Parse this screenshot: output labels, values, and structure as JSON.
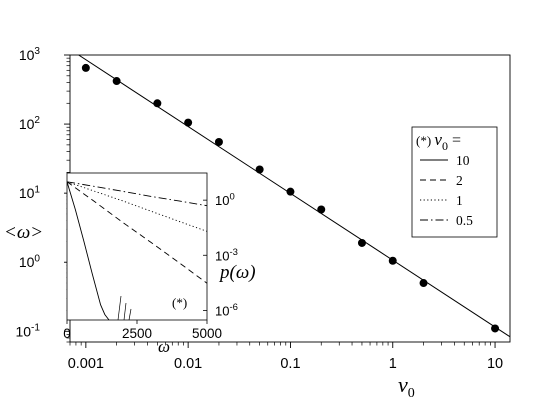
{
  "chart_data": [
    {
      "type": "scatter",
      "role": "main",
      "x_scale": "log",
      "y_scale": "log",
      "xlim": [
        0.0007,
        14
      ],
      "ylim": [
        0.07,
        1000
      ],
      "xlabel": "v",
      "xlabel_subscript": "0",
      "ylabel": "<ω>",
      "x_ticks": [
        {
          "value": 0.001,
          "label": "0.001"
        },
        {
          "value": 0.01,
          "label": "0.01"
        },
        {
          "value": 0.1,
          "label": "0.1"
        },
        {
          "value": 1,
          "label": "1"
        },
        {
          "value": 10,
          "label": "10"
        }
      ],
      "y_ticks": [
        {
          "value": 0.1,
          "base": "10",
          "exp": "-1"
        },
        {
          "value": 1,
          "base": "10",
          "exp": "0"
        },
        {
          "value": 10,
          "base": "10",
          "exp": "1"
        },
        {
          "value": 100,
          "base": "10",
          "exp": "2"
        },
        {
          "value": 1000,
          "base": "10",
          "exp": "3"
        }
      ],
      "series": [
        {
          "style": "points",
          "x": [
            0.001,
            0.002,
            0.005,
            0.01,
            0.02,
            0.05,
            0.1,
            0.2,
            0.5,
            1,
            2,
            10
          ],
          "y": [
            650,
            420,
            200,
            105,
            55,
            22,
            10.5,
            5.8,
            1.9,
            1.05,
            0.5,
            0.11
          ]
        },
        {
          "style": "line",
          "x": [
            0.00085,
            15
          ],
          "y": [
            1000,
            0.078
          ]
        }
      ],
      "legend": {
        "position": "right",
        "title_prefix": "(*)",
        "title_symbol": "v",
        "title_subscript": "0",
        "title_suffix": "=",
        "entries": [
          {
            "label": "10",
            "dash": "solid"
          },
          {
            "label": "2",
            "dash": "dashed"
          },
          {
            "label": "1",
            "dash": "dotted"
          },
          {
            "label": "0.5",
            "dash": "dashdot"
          }
        ]
      }
    },
    {
      "type": "line",
      "role": "inset",
      "x_scale": "linear",
      "y_scale": "log",
      "xlim": [
        0,
        5000
      ],
      "ylim": [
        3e-07,
        30
      ],
      "xlabel": "ω",
      "ylabel": "p(ω)",
      "annotation": "(*)",
      "x_ticks": [
        {
          "value": 0,
          "label": "0"
        },
        {
          "value": 2500,
          "label": "2500"
        },
        {
          "value": 5000,
          "label": "5000"
        }
      ],
      "y_ticks": [
        {
          "value": 1,
          "base": "10",
          "exp": "0"
        },
        {
          "value": 0.001,
          "base": "10",
          "exp": "-3"
        },
        {
          "value": 1e-06,
          "base": "10",
          "exp": "-6"
        }
      ],
      "series": [
        {
          "label": "10",
          "dash": "solid",
          "x": [
            0,
            300,
            600,
            900,
            1200,
            1350,
            1500
          ],
          "y": [
            10,
            0.3,
            0.006,
            0.0001,
            2e-06,
            6e-07,
            3e-07
          ]
        },
        {
          "label": "2",
          "dash": "dashed",
          "x": [
            0,
            1000,
            2000,
            3000,
            4000,
            5000
          ],
          "y": [
            10,
            0.8,
            0.06,
            0.005,
            0.0004,
            3e-05
          ]
        },
        {
          "label": "1",
          "dash": "dotted",
          "x": [
            0,
            1000,
            2000,
            3000,
            4000,
            5000
          ],
          "y": [
            10,
            3,
            0.9,
            0.25,
            0.07,
            0.02
          ]
        },
        {
          "label": "0.5",
          "dash": "dashdot",
          "x": [
            0,
            1000,
            2000,
            3000,
            4000,
            5000
          ],
          "y": [
            10,
            5.5,
            3,
            1.6,
            0.9,
            0.5
          ]
        }
      ]
    }
  ]
}
